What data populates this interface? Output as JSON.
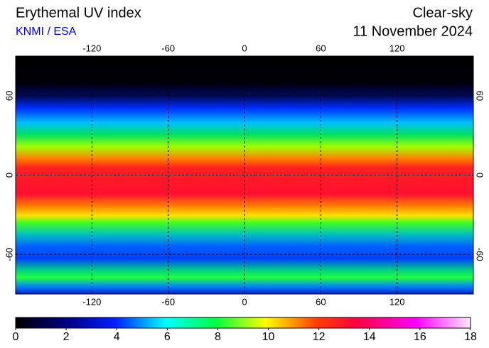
{
  "header": {
    "title": "Erythemal UV index",
    "source": "KNMI / ESA",
    "condition": "Clear-sky",
    "date": "11 November 2024"
  },
  "map": {
    "lon_ticks": [
      -120,
      -60,
      0,
      60,
      120
    ],
    "lat_ticks": [
      60,
      0,
      -60
    ],
    "lon_range": [
      -180,
      180
    ],
    "lat_range": [
      90,
      -90
    ]
  },
  "colorbar": {
    "range": [
      0,
      18
    ],
    "ticks": [
      0,
      2,
      4,
      6,
      8,
      10,
      12,
      14,
      16,
      18
    ]
  }
}
